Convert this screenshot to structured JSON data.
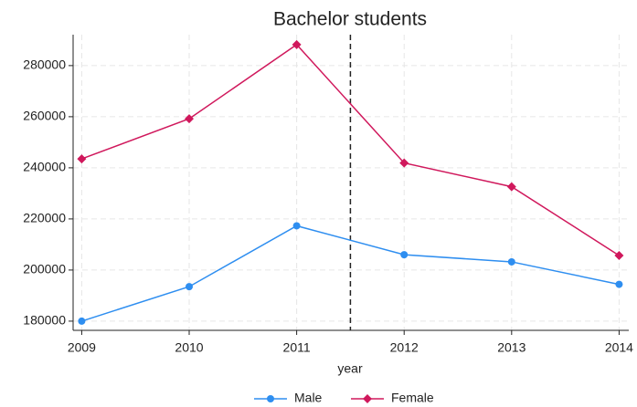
{
  "chart_data": {
    "type": "line",
    "title": "Bachelor students",
    "x_label": "year",
    "x": [
      2009,
      2010,
      2011,
      2012,
      2013,
      2014
    ],
    "series": [
      {
        "name": "Male",
        "color": "#2e8ef0",
        "marker": "circle",
        "values": [
          180000,
          193500,
          217300,
          206000,
          203200,
          194400
        ]
      },
      {
        "name": "Female",
        "color": "#d0185c",
        "marker": "diamond",
        "values": [
          243500,
          259200,
          288200,
          241900,
          232600,
          205700
        ]
      }
    ],
    "xlim": [
      2008.92,
      2014.09
    ],
    "xticks": [
      2009,
      2010,
      2011,
      2012,
      2013,
      2014
    ],
    "ylim": [
      176400,
      292100
    ],
    "yticks": [
      180000,
      200000,
      220000,
      240000,
      260000,
      280000
    ],
    "grid": true,
    "reference_line": {
      "x": 2011.5,
      "style": "dashed"
    },
    "legend": "bottom"
  }
}
